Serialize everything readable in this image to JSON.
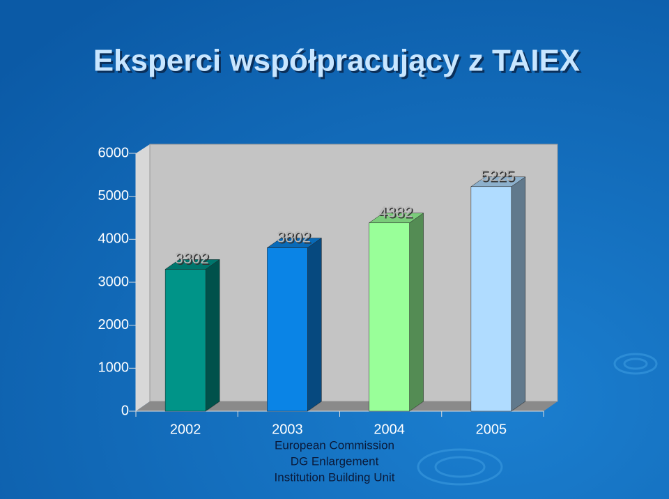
{
  "chart_data": {
    "type": "bar3d",
    "title": "Eksperci współpracujący z TAIEX",
    "categories": [
      "2002",
      "2003",
      "2004",
      "2005"
    ],
    "values": [
      3302,
      3802,
      4382,
      5225
    ],
    "colors": [
      "#009488",
      "#0a84e6",
      "#99ff99",
      "#b0dcff"
    ],
    "ylim": [
      0,
      6000
    ],
    "yticks": [
      0,
      1000,
      2000,
      3000,
      4000,
      5000,
      6000
    ],
    "footer": [
      "European Commission",
      "DG Enlargement",
      "Institution Building Unit"
    ]
  }
}
